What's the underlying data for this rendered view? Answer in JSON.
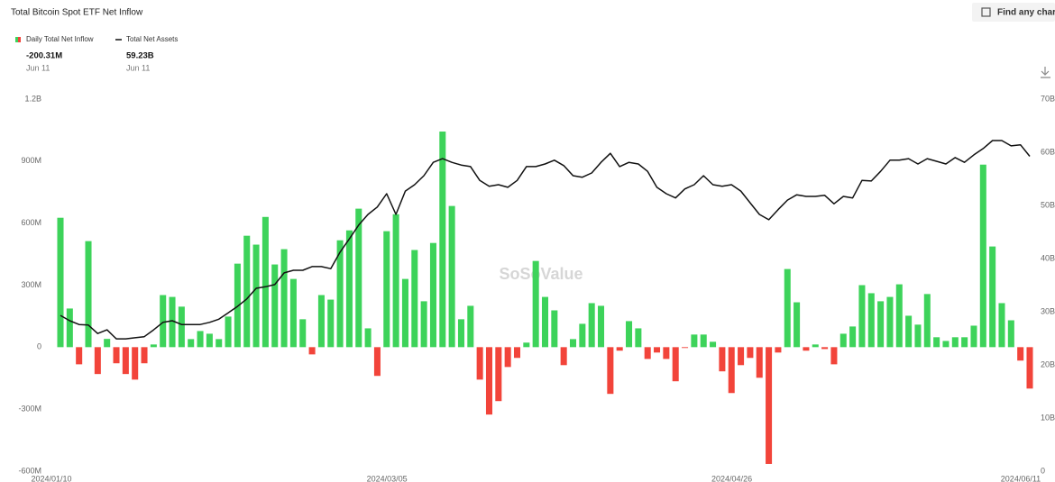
{
  "header": {
    "title": "Total Bitcoin Spot ETF Net Inflow",
    "search_button": "Find any char"
  },
  "chart_data": {
    "type": "bar",
    "categories": [
      "2024/01/10",
      null,
      null,
      null,
      null,
      null,
      null,
      null,
      null,
      null,
      null,
      null,
      null,
      null,
      null,
      null,
      null,
      null,
      null,
      null,
      null,
      null,
      null,
      null,
      null,
      null,
      null,
      null,
      null,
      null,
      null,
      null,
      null,
      null,
      null,
      null,
      "2024/03/05",
      null,
      null,
      null,
      null,
      null,
      null,
      null,
      null,
      null,
      null,
      null,
      null,
      null,
      null,
      null,
      null,
      null,
      null,
      null,
      null,
      null,
      null,
      null,
      null,
      null,
      null,
      null,
      null,
      null,
      null,
      null,
      null,
      null,
      null,
      null,
      null,
      "2024/04/26",
      null,
      null,
      null,
      null,
      null,
      null,
      null,
      null,
      null,
      null,
      null,
      null,
      null,
      null,
      null,
      null,
      null,
      null,
      null,
      null,
      null,
      null,
      null,
      null,
      null,
      null,
      null,
      null,
      null,
      null,
      "2024/06/11"
    ],
    "series": [
      {
        "name": "Daily Total Net Inflow",
        "color": "#3dd35a",
        "negative_color": "#f2443a",
        "values": [
          626,
          187,
          -83,
          513,
          -130,
          40,
          -78,
          -130,
          -157,
          -78,
          13,
          252,
          243,
          196,
          39,
          78,
          65,
          39,
          148,
          404,
          539,
          496,
          630,
          400,
          474,
          330,
          135,
          -35,
          252,
          230,
          517,
          565,
          670,
          91,
          -139,
          561,
          643,
          330,
          470,
          222,
          504,
          1043,
          683,
          135,
          200,
          -157,
          -326,
          -261,
          -96,
          -52,
          22,
          417,
          243,
          178,
          -87,
          39,
          113,
          213,
          200,
          -226,
          -17,
          126,
          91,
          -57,
          -26,
          -57,
          -165,
          -4,
          61,
          61,
          26,
          -117,
          -222,
          -87,
          -52,
          -148,
          -565,
          -26,
          378,
          217,
          -17,
          13,
          -9,
          -83,
          65,
          100,
          300,
          261,
          222,
          243,
          304,
          152,
          109,
          257,
          48,
          30,
          48,
          48,
          104,
          883,
          487,
          213,
          130,
          -65,
          -200.31
        ]
      },
      {
        "name": "Total Net Assets",
        "type": "line",
        "color": "#111111",
        "axis": "y2",
        "values": [
          29.3,
          28.3,
          27.6,
          27.5,
          25.9,
          26.6,
          24.9,
          24.9,
          25.1,
          25.3,
          26.6,
          28.0,
          28.3,
          27.6,
          27.6,
          27.6,
          28.0,
          28.6,
          29.8,
          31.0,
          32.4,
          34.4,
          34.7,
          35.1,
          37.3,
          37.8,
          37.8,
          38.5,
          38.5,
          38.1,
          41.2,
          43.7,
          46.3,
          48.3,
          49.7,
          52.2,
          48.3,
          52.7,
          53.9,
          55.6,
          58.1,
          58.8,
          58.1,
          57.6,
          57.3,
          54.7,
          53.6,
          53.9,
          53.4,
          54.7,
          57.3,
          57.3,
          57.8,
          58.5,
          57.5,
          55.6,
          55.3,
          56.1,
          58.1,
          59.8,
          57.3,
          58.1,
          57.8,
          56.4,
          53.4,
          52.2,
          51.4,
          53.1,
          53.9,
          55.6,
          53.9,
          53.6,
          53.9,
          52.7,
          50.5,
          48.3,
          47.3,
          49.2,
          51.0,
          52.0,
          51.7,
          51.7,
          51.9,
          50.3,
          51.7,
          51.4,
          54.7,
          54.6,
          56.4,
          58.5,
          58.5,
          58.8,
          57.8,
          58.8,
          58.3,
          57.8,
          59.0,
          58.1,
          59.5,
          60.7,
          62.2,
          62.2,
          61.2,
          61.4,
          59.23
        ]
      }
    ],
    "ylim": [
      -600,
      1200
    ],
    "yticks": [
      {
        "value": -600,
        "label": "-600M"
      },
      {
        "value": -300,
        "label": "-300M"
      },
      0,
      {
        "value": 300,
        "label": "300M"
      },
      {
        "value": 600,
        "label": "600M"
      },
      {
        "value": 900,
        "label": "900M"
      },
      {
        "value": 1200,
        "label": "1.2B"
      }
    ],
    "y2lim": [
      0,
      70
    ],
    "y2ticks": [
      0,
      {
        "value": 10,
        "label": "10B"
      },
      {
        "value": 20,
        "label": "20B"
      },
      {
        "value": 30,
        "label": "30B"
      },
      {
        "value": 40,
        "label": "40B"
      },
      {
        "value": 50,
        "label": "50B"
      },
      {
        "value": 60,
        "label": "60B"
      },
      {
        "value": 70,
        "label": "70B"
      }
    ],
    "grid": false,
    "readouts": [
      {
        "value": "-200.31M",
        "date": "Jun 11"
      },
      {
        "value": "59.23B",
        "date": "Jun 11"
      }
    ],
    "watermark": "SoSoValue"
  }
}
